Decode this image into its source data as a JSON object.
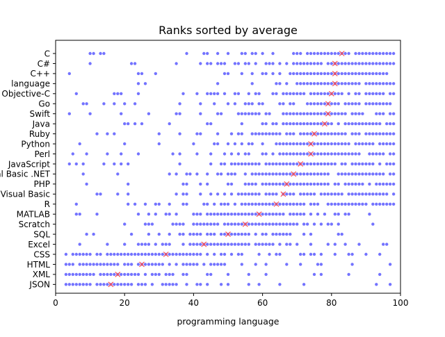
{
  "chart_data": {
    "type": "scatter",
    "title": "Ranks sorted by average",
    "xlabel": "programming language",
    "ylabel": "",
    "xlim": [
      0,
      100
    ],
    "xticks": [
      0,
      20,
      40,
      60,
      80,
      100
    ],
    "categories": [
      "C",
      "C#",
      "C++",
      "language",
      "Objective-C",
      "Go",
      "Swift",
      "Java",
      "Ruby",
      "Python",
      "Perl",
      "JavaScript",
      "Visual Basic .NET",
      "PHP",
      "Visual Basic",
      "R",
      "MATLAB",
      "Scratch",
      "SQL",
      "Excel",
      "CSS",
      "HTML",
      "XML",
      "JSON"
    ],
    "averages": [
      83,
      81,
      81,
      81,
      80,
      79,
      79,
      78,
      75,
      74,
      74,
      71,
      69,
      67,
      66,
      64,
      59,
      55,
      50,
      43,
      32,
      25,
      18,
      16
    ],
    "rank_range": [
      3,
      98
    ],
    "point_color": "#0000ff",
    "average_marker_color": "#ff4d4d",
    "grid": false,
    "legend": "none"
  }
}
